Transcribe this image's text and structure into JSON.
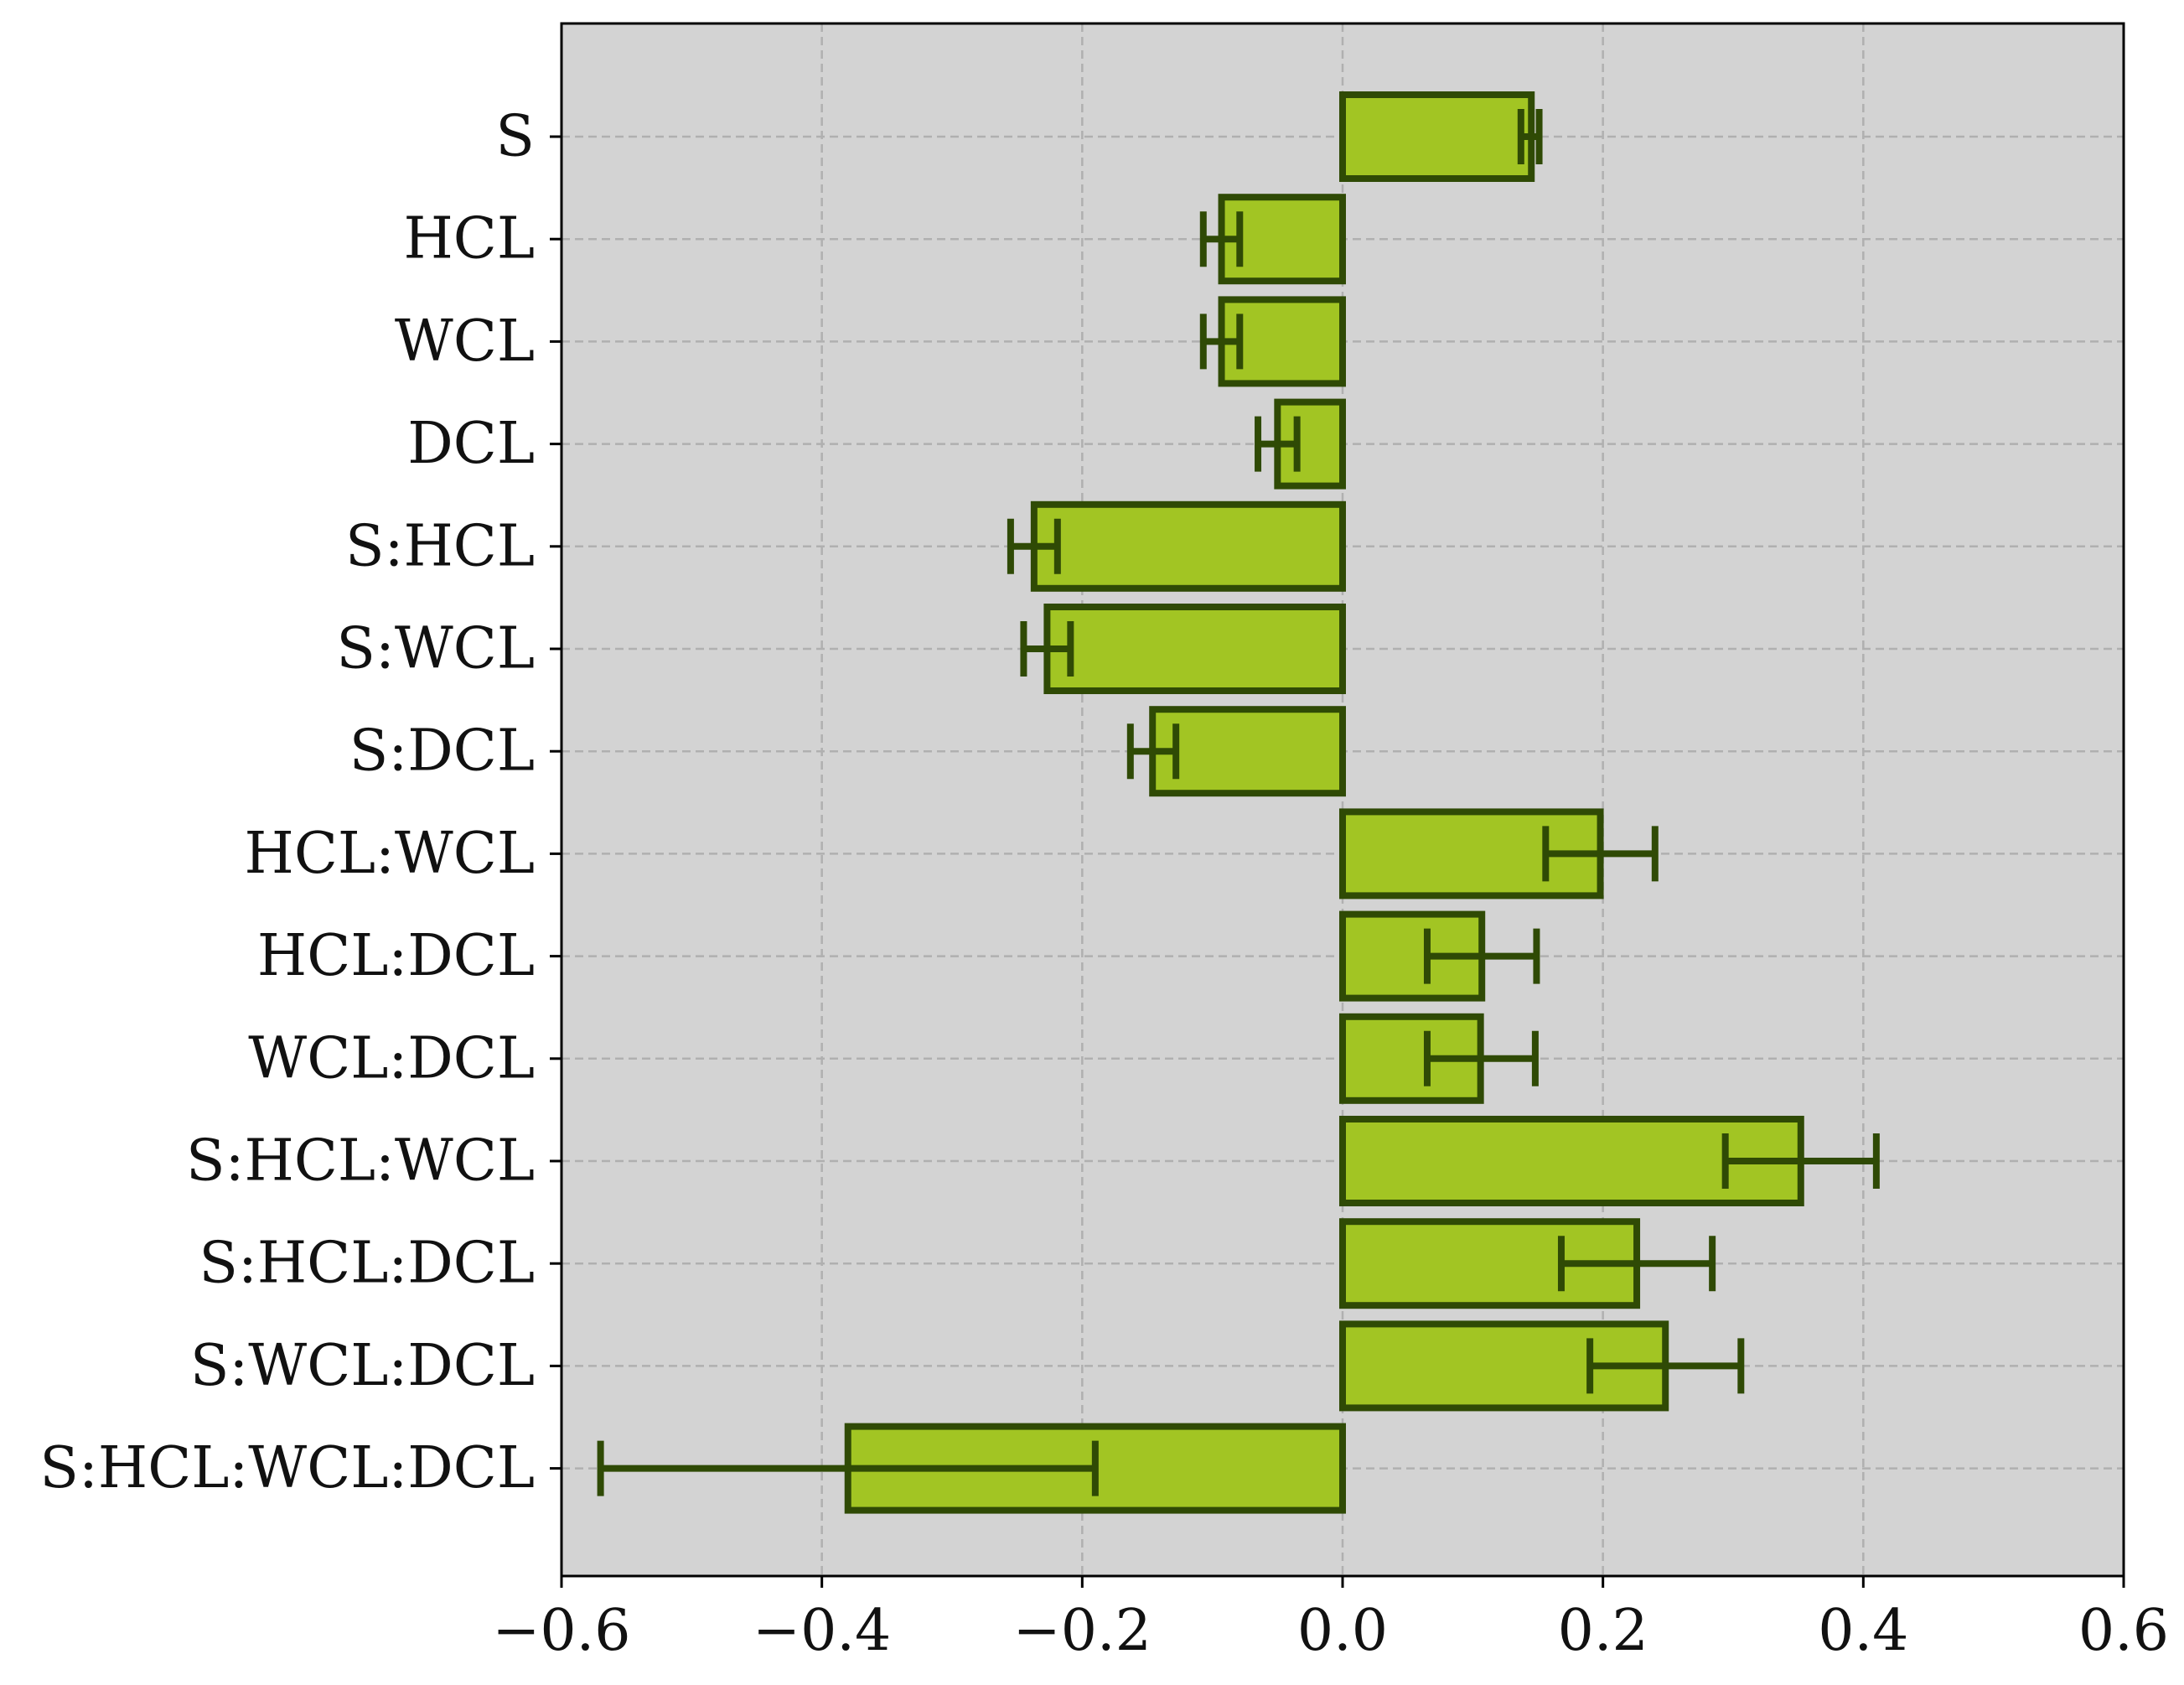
{
  "chart_data": {
    "type": "bar",
    "orientation": "horizontal",
    "categories": [
      "S",
      "HCL",
      "WCL",
      "DCL",
      "S:HCL",
      "S:WCL",
      "S:DCL",
      "HCL:WCL",
      "HCL:DCL",
      "WCL:DCL",
      "S:HCL:WCL",
      "S:HCL:DCL",
      "S:WCL:DCL",
      "S:HCL:WCL:DCL"
    ],
    "series": [
      {
        "values": [
          0.145,
          -0.093,
          -0.093,
          -0.05,
          -0.237,
          -0.227,
          -0.146,
          0.198,
          0.107,
          0.106,
          0.352,
          0.226,
          0.248,
          -0.38
        ],
        "error_low": [
          0.137,
          -0.107,
          -0.107,
          -0.065,
          -0.255,
          -0.245,
          -0.163,
          0.156,
          0.065,
          0.065,
          0.294,
          0.168,
          0.19,
          -0.57
        ],
        "error_high": [
          0.151,
          -0.079,
          -0.079,
          -0.035,
          -0.219,
          -0.209,
          -0.128,
          0.24,
          0.149,
          0.148,
          0.41,
          0.284,
          0.306,
          -0.19
        ]
      }
    ],
    "xlim": [
      -0.6,
      0.6
    ],
    "xticks": [
      -0.6,
      -0.4,
      -0.2,
      0.0,
      0.2,
      0.4,
      0.6
    ],
    "xtick_labels": [
      "−0.6",
      "−0.4",
      "−0.2",
      "0.0",
      "0.2",
      "0.4",
      "0.6"
    ],
    "title": "",
    "xlabel": "",
    "ylabel": "",
    "grid": true,
    "legend": "none",
    "colors": {
      "bar_fill": "#a2c523",
      "bar_edge": "#2f4a05",
      "error_bar": "#2f4a05",
      "plot_background": "#d3d3d3",
      "grid": "#b0b0b0",
      "axis": "#000000"
    }
  }
}
